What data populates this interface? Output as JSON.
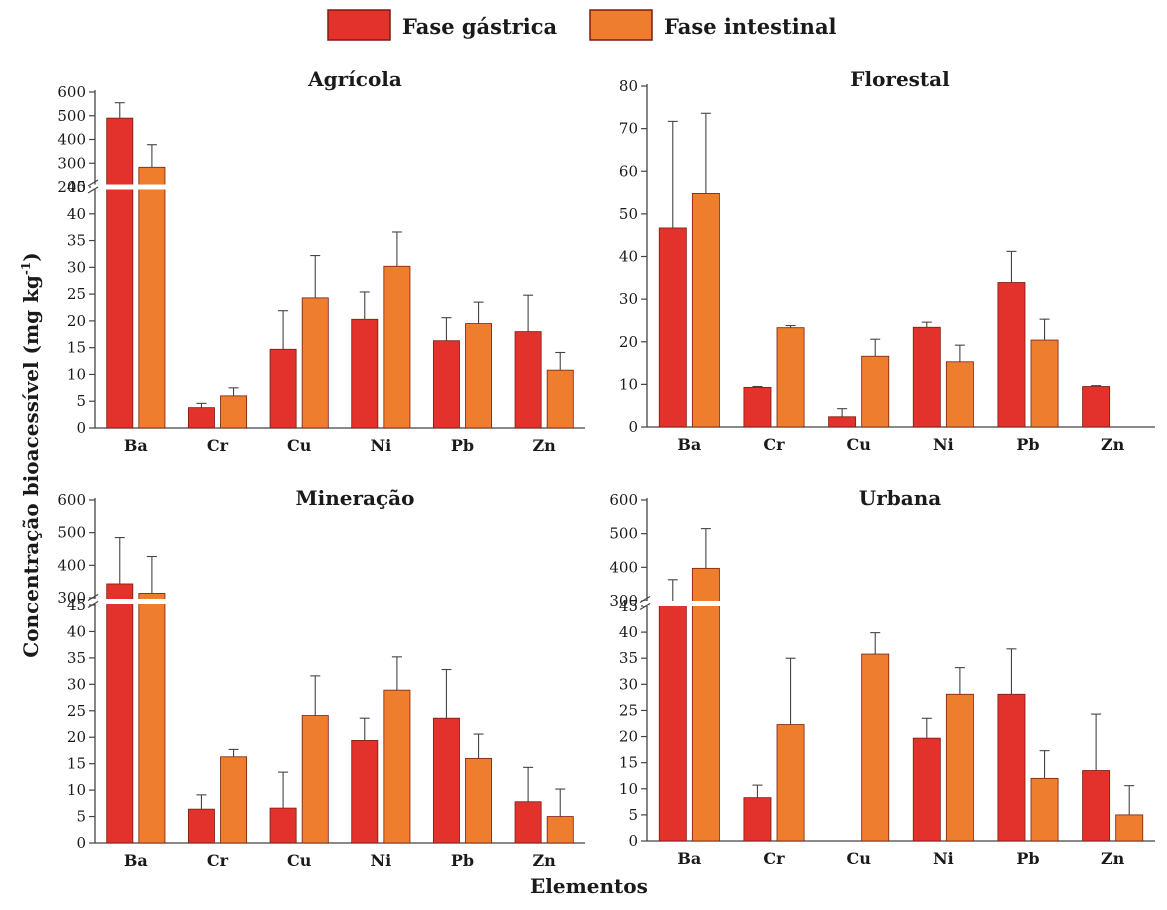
{
  "legend": {
    "gastric_label": "Fase gástrica",
    "intestinal_label": "Fase intestinal"
  },
  "axis": {
    "ylabel": "Concentração bioacessível (mg kg",
    "ylabel_sup": "-1",
    "ylabel_close": ")",
    "xlabel": "Elementos"
  },
  "colors": {
    "gastric": "#e3312b",
    "intestinal": "#ef7d2e",
    "bar_stroke": "#7a1d10",
    "axis": "#444444",
    "background": "#ffffff"
  },
  "chart_data": [
    {
      "type": "bar",
      "title": "Agrícola",
      "categories": [
        "Ba",
        "Cr",
        "Cu",
        "Ni",
        "Pb",
        "Zn"
      ],
      "series": [
        {
          "name": "Fase gástrica",
          "values": [
            490,
            3.8,
            14.7,
            20.3,
            16.3,
            18.0
          ],
          "errors": [
            65,
            0.8,
            7.2,
            5.1,
            4.3,
            6.8
          ]
        },
        {
          "name": "Fase intestinal",
          "values": [
            283,
            6.0,
            24.3,
            30.2,
            19.5,
            10.8
          ],
          "errors": [
            95,
            1.5,
            7.9,
            6.4,
            4.0,
            3.3
          ]
        }
      ],
      "axis_break": true,
      "ylim_lower": [
        0,
        45
      ],
      "yticks_lower": [
        0,
        5,
        10,
        15,
        20,
        25,
        30,
        35,
        40,
        45
      ],
      "ylim_upper": [
        200,
        600
      ],
      "yticks_upper": [
        200,
        300,
        400,
        500,
        600
      ]
    },
    {
      "type": "bar",
      "title": "Florestal",
      "categories": [
        "Ba",
        "Cr",
        "Cu",
        "Ni",
        "Pb",
        "Zn"
      ],
      "series": [
        {
          "name": "Fase gástrica",
          "values": [
            46.7,
            9.3,
            2.4,
            23.4,
            33.9,
            9.5
          ],
          "errors": [
            25.0,
            0.2,
            1.9,
            1.2,
            7.3,
            0.2
          ]
        },
        {
          "name": "Fase intestinal",
          "values": [
            54.8,
            23.3,
            16.6,
            15.3,
            20.4,
            null
          ],
          "errors": [
            18.8,
            0.5,
            4.0,
            3.9,
            4.9,
            null
          ]
        }
      ],
      "axis_break": false,
      "ylim": [
        0,
        80
      ],
      "yticks": [
        0,
        10,
        20,
        30,
        40,
        50,
        60,
        70,
        80
      ]
    },
    {
      "type": "bar",
      "title": "Mineração",
      "categories": [
        "Ba",
        "Cr",
        "Cu",
        "Ni",
        "Pb",
        "Zn"
      ],
      "series": [
        {
          "name": "Fase gástrica",
          "values": [
            343,
            6.4,
            6.6,
            19.4,
            23.6,
            7.8
          ],
          "errors": [
            142,
            2.7,
            6.8,
            4.2,
            9.2,
            6.5
          ]
        },
        {
          "name": "Fase intestinal",
          "values": [
            314,
            16.3,
            24.1,
            28.9,
            16.0,
            5.0
          ],
          "errors": [
            113,
            1.4,
            7.5,
            6.3,
            4.6,
            5.2
          ]
        }
      ],
      "axis_break": true,
      "ylim_lower": [
        0,
        45
      ],
      "yticks_lower": [
        0,
        5,
        10,
        15,
        20,
        25,
        30,
        35,
        40,
        45
      ],
      "ylim_upper": [
        300,
        600
      ],
      "yticks_upper": [
        300,
        400,
        500,
        600
      ]
    },
    {
      "type": "bar",
      "title": "Urbana",
      "categories": [
        "Ba",
        "Cr",
        "Cu",
        "Ni",
        "Pb",
        "Zn"
      ],
      "series": [
        {
          "name": "Fase gástrica",
          "values": [
            288,
            8.3,
            null,
            19.7,
            28.1,
            13.5
          ],
          "errors": [
            75,
            2.4,
            null,
            3.8,
            8.7,
            10.8
          ]
        },
        {
          "name": "Fase intestinal",
          "values": [
            397,
            22.3,
            35.8,
            28.1,
            12.0,
            5.0
          ],
          "errors": [
            118,
            12.7,
            4.1,
            5.1,
            5.3,
            5.6
          ]
        }
      ],
      "axis_break": true,
      "ylim_lower": [
        0,
        45
      ],
      "yticks_lower": [
        0,
        5,
        10,
        15,
        20,
        25,
        30,
        35,
        40,
        45
      ],
      "ylim_upper": [
        300,
        600
      ],
      "yticks_upper": [
        300,
        400,
        500,
        600
      ]
    }
  ]
}
